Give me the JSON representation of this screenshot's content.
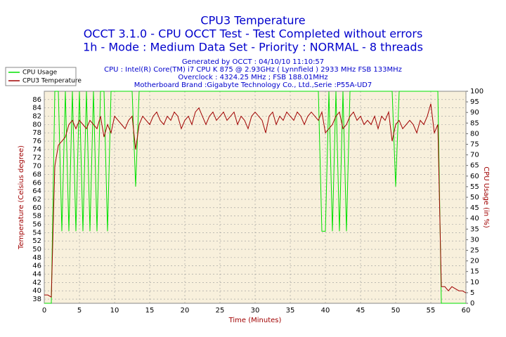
{
  "chart_data": {
    "type": "line",
    "title": "CPU3 Temperature",
    "subtitles": [
      "OCCT 3.1.0 - CPU OCCT Test - Test Completed without errors",
      "1h - Mode : Medium Data Set - Priority : NORMAL - 8 threads"
    ],
    "info": [
      "Generated by OCCT : 04/10/10 11:10:57",
      "CPU : Intel(R) Core(TM) i7 CPU K 875 @ 2.93GHz ( Lynnfield ) 2933 MHz FSB 133MHz",
      "Overclock : 4324.25 MHz ; FSB 188.01MHz",
      "Motherboard Brand :Gigabyte Technology Co., Ltd.,Serie :P55A-UD7"
    ],
    "x_label": "Time (Minutes)",
    "y_label": "Temperature (Celsius degree)",
    "y2_label": "CPU Usage (in %)",
    "xlim": [
      0,
      60
    ],
    "xticks": [
      0,
      5,
      10,
      15,
      20,
      25,
      30,
      35,
      40,
      45,
      50,
      55,
      60
    ],
    "ylim": [
      37,
      88
    ],
    "yticks": [
      38,
      40,
      42,
      44,
      46,
      48,
      50,
      52,
      54,
      56,
      58,
      60,
      62,
      64,
      66,
      68,
      70,
      72,
      74,
      76,
      78,
      80,
      82,
      84,
      86
    ],
    "y2lim": [
      0,
      100
    ],
    "y2ticks": [
      0,
      5,
      10,
      15,
      20,
      25,
      30,
      35,
      40,
      45,
      50,
      55,
      60,
      65,
      70,
      75,
      80,
      85,
      90,
      95,
      100
    ],
    "grid": true,
    "x": [
      0,
      0.5,
      1,
      1.5,
      2,
      2.5,
      3,
      3.5,
      4,
      4.5,
      5,
      5.5,
      6,
      6.5,
      7,
      7.5,
      8,
      8.5,
      9,
      9.5,
      10,
      10.5,
      11,
      11.5,
      12,
      12.5,
      13,
      13.5,
      14,
      14.5,
      15,
      15.5,
      16,
      16.5,
      17,
      17.5,
      18,
      18.5,
      19,
      19.5,
      20,
      20.5,
      21,
      21.5,
      22,
      22.5,
      23,
      23.5,
      24,
      24.5,
      25,
      25.5,
      26,
      26.5,
      27,
      27.5,
      28,
      28.5,
      29,
      29.5,
      30,
      30.5,
      31,
      31.5,
      32,
      32.5,
      33,
      33.5,
      34,
      34.5,
      35,
      35.5,
      36,
      36.5,
      37,
      37.5,
      38,
      38.5,
      39,
      39.5,
      40,
      40.5,
      41,
      41.5,
      42,
      42.5,
      43,
      43.5,
      44,
      44.5,
      45,
      45.5,
      46,
      46.5,
      47,
      47.5,
      48,
      48.5,
      49,
      49.5,
      50,
      50.5,
      51,
      51.5,
      52,
      52.5,
      53,
      53.5,
      54,
      54.5,
      55,
      55.5,
      56,
      56.5,
      57,
      57.5,
      58,
      58.5,
      59,
      59.5,
      60
    ],
    "series": [
      {
        "name": "CPU Usage",
        "color": "#00e000",
        "axis": "y2",
        "values": [
          0,
          0,
          0,
          100,
          100,
          34,
          100,
          34,
          100,
          34,
          100,
          34,
          100,
          34,
          100,
          34,
          100,
          100,
          34,
          100,
          100,
          100,
          100,
          100,
          100,
          100,
          55,
          100,
          100,
          100,
          100,
          100,
          100,
          100,
          100,
          100,
          100,
          100,
          100,
          100,
          100,
          100,
          100,
          100,
          100,
          100,
          100,
          100,
          100,
          100,
          100,
          100,
          100,
          100,
          100,
          100,
          100,
          100,
          100,
          100,
          100,
          100,
          100,
          100,
          100,
          100,
          100,
          100,
          100,
          100,
          100,
          100,
          100,
          100,
          100,
          100,
          100,
          100,
          100,
          34,
          34,
          100,
          34,
          100,
          34,
          100,
          34,
          100,
          100,
          100,
          100,
          100,
          100,
          100,
          100,
          100,
          100,
          100,
          100,
          100,
          55,
          100,
          100,
          100,
          100,
          100,
          100,
          100,
          100,
          100,
          100,
          100,
          100,
          0,
          0,
          0,
          0,
          0,
          0,
          0,
          0
        ]
      },
      {
        "name": "CPU3 Temperature",
        "color": "#a00000",
        "values": [
          39,
          39,
          38.5,
          70,
          75,
          76,
          77,
          80,
          81,
          79,
          81,
          80,
          79,
          81,
          80,
          79,
          82,
          77,
          80,
          78,
          82,
          81,
          80,
          79,
          81,
          82,
          74,
          80,
          82,
          81,
          80,
          82,
          83,
          81,
          80,
          82,
          81,
          83,
          82,
          79,
          81,
          82,
          80,
          83,
          84,
          82,
          80,
          82,
          83,
          81,
          82,
          83,
          81,
          82,
          83,
          80,
          82,
          81,
          79,
          82,
          83,
          82,
          81,
          78,
          82,
          83,
          80,
          82,
          81,
          83,
          82,
          81,
          83,
          82,
          80,
          82,
          83,
          82,
          81,
          83,
          78,
          79,
          80,
          82,
          83,
          79,
          80,
          82,
          83,
          81,
          82,
          80,
          81,
          80,
          82,
          79,
          82,
          81,
          83,
          76,
          80,
          81,
          79,
          80,
          81,
          80,
          78,
          81,
          80,
          82,
          85,
          78,
          80,
          41,
          41,
          40,
          41,
          40.5,
          40,
          40,
          39.5
        ]
      }
    ]
  }
}
